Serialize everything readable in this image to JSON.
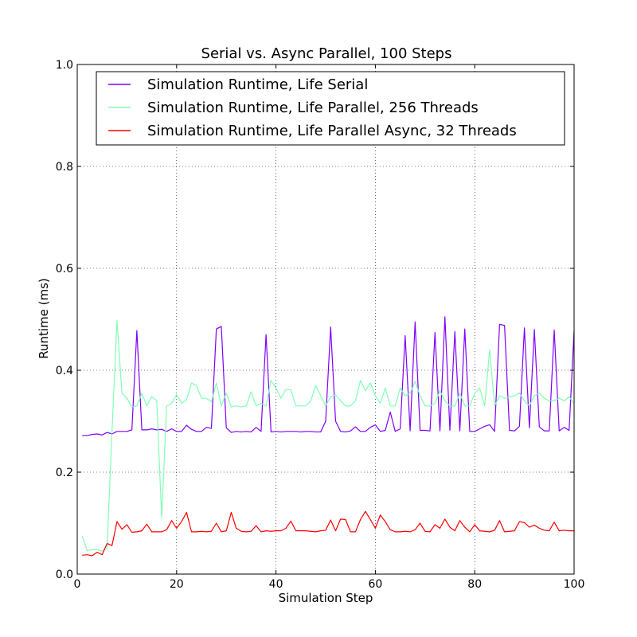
{
  "chart_data": {
    "type": "line",
    "title": "Serial vs. Async Parallel, 100 Steps",
    "xlabel": "Simulation Step",
    "ylabel": "Runtime (ms)",
    "xlim": [
      0,
      100
    ],
    "ylim": [
      0.0,
      1.0
    ],
    "xticks": [
      "0",
      "20",
      "40",
      "60",
      "80",
      "100"
    ],
    "yticks": [
      "0.0",
      "0.2",
      "0.4",
      "0.6",
      "0.8",
      "1.0"
    ],
    "grid": true,
    "legend_position": "top-left",
    "x": [
      1,
      2,
      3,
      4,
      5,
      6,
      7,
      8,
      9,
      10,
      11,
      12,
      13,
      14,
      15,
      16,
      17,
      18,
      19,
      20,
      21,
      22,
      23,
      24,
      25,
      26,
      27,
      28,
      29,
      30,
      31,
      32,
      33,
      34,
      35,
      36,
      37,
      38,
      39,
      40,
      41,
      42,
      43,
      44,
      45,
      46,
      47,
      48,
      49,
      50,
      51,
      52,
      53,
      54,
      55,
      56,
      57,
      58,
      59,
      60,
      61,
      62,
      63,
      64,
      65,
      66,
      67,
      68,
      69,
      70,
      71,
      72,
      73,
      74,
      75,
      76,
      77,
      78,
      79,
      80,
      81,
      82,
      83,
      84,
      85,
      86,
      87,
      88,
      89,
      90,
      91,
      92,
      93,
      94,
      95,
      96,
      97,
      98,
      99,
      100
    ],
    "series": [
      {
        "name": "Simulation Runtime, Life Serial",
        "color": "#8000ff",
        "values": [
          0.272,
          0.272,
          0.274,
          0.275,
          0.273,
          0.278,
          0.275,
          0.28,
          0.28,
          0.28,
          0.283,
          0.478,
          0.283,
          0.283,
          0.285,
          0.283,
          0.284,
          0.28,
          0.285,
          0.28,
          0.28,
          0.292,
          0.284,
          0.28,
          0.28,
          0.288,
          0.286,
          0.481,
          0.486,
          0.287,
          0.278,
          0.28,
          0.279,
          0.28,
          0.279,
          0.288,
          0.28,
          0.47,
          0.279,
          0.28,
          0.279,
          0.28,
          0.28,
          0.28,
          0.279,
          0.28,
          0.28,
          0.279,
          0.279,
          0.3,
          0.485,
          0.3,
          0.28,
          0.279,
          0.281,
          0.289,
          0.28,
          0.28,
          0.288,
          0.293,
          0.28,
          0.282,
          0.318,
          0.28,
          0.285,
          0.468,
          0.281,
          0.495,
          0.282,
          0.282,
          0.281,
          0.474,
          0.281,
          0.505,
          0.282,
          0.476,
          0.281,
          0.481,
          0.28,
          0.28,
          0.285,
          0.29,
          0.293,
          0.28,
          0.49,
          0.488,
          0.282,
          0.281,
          0.29,
          0.483,
          0.287,
          0.48,
          0.289,
          0.281,
          0.281,
          0.479,
          0.281,
          0.288,
          0.282,
          0.478
        ]
      },
      {
        "name": "Simulation Runtime, Life Parallel, 256 Threads",
        "color": "#80ffb4",
        "values": [
          0.075,
          0.046,
          0.048,
          0.048,
          0.045,
          0.05,
          0.28,
          0.498,
          0.355,
          0.345,
          0.328,
          0.33,
          0.355,
          0.33,
          0.348,
          0.34,
          0.11,
          0.33,
          0.335,
          0.352,
          0.335,
          0.342,
          0.375,
          0.37,
          0.345,
          0.345,
          0.338,
          0.375,
          0.33,
          0.355,
          0.328,
          0.33,
          0.328,
          0.33,
          0.358,
          0.33,
          0.335,
          0.33,
          0.38,
          0.365,
          0.345,
          0.362,
          0.362,
          0.33,
          0.33,
          0.33,
          0.34,
          0.37,
          0.35,
          0.33,
          0.348,
          0.352,
          0.34,
          0.33,
          0.33,
          0.34,
          0.38,
          0.36,
          0.375,
          0.35,
          0.335,
          0.365,
          0.33,
          0.33,
          0.365,
          0.35,
          0.355,
          0.378,
          0.35,
          0.33,
          0.33,
          0.335,
          0.36,
          0.34,
          0.33,
          0.33,
          0.355,
          0.33,
          0.33,
          0.355,
          0.365,
          0.33,
          0.44,
          0.33,
          0.35,
          0.345,
          0.348,
          0.35,
          0.355,
          0.34,
          0.33,
          0.35,
          0.355,
          0.345,
          0.34,
          0.34,
          0.345,
          0.34,
          0.348,
          0.335
        ]
      },
      {
        "name": "Simulation Runtime, Life Parallel Async, 32 Threads",
        "color": "#ff0000",
        "values": [
          0.037,
          0.038,
          0.036,
          0.043,
          0.038,
          0.06,
          0.056,
          0.103,
          0.088,
          0.097,
          0.082,
          0.083,
          0.085,
          0.098,
          0.083,
          0.083,
          0.083,
          0.087,
          0.105,
          0.09,
          0.103,
          0.121,
          0.083,
          0.083,
          0.084,
          0.083,
          0.084,
          0.1,
          0.083,
          0.085,
          0.121,
          0.09,
          0.084,
          0.083,
          0.084,
          0.095,
          0.083,
          0.085,
          0.084,
          0.085,
          0.085,
          0.09,
          0.104,
          0.085,
          0.085,
          0.085,
          0.084,
          0.083,
          0.085,
          0.086,
          0.106,
          0.085,
          0.108,
          0.107,
          0.083,
          0.083,
          0.107,
          0.123,
          0.107,
          0.09,
          0.116,
          0.103,
          0.087,
          0.083,
          0.083,
          0.084,
          0.083,
          0.087,
          0.1,
          0.084,
          0.083,
          0.097,
          0.09,
          0.108,
          0.092,
          0.085,
          0.105,
          0.092,
          0.083,
          0.097,
          0.085,
          0.084,
          0.083,
          0.086,
          0.105,
          0.083,
          0.084,
          0.085,
          0.103,
          0.101,
          0.092,
          0.096,
          0.09,
          0.086,
          0.085,
          0.102,
          0.085,
          0.086,
          0.085,
          0.085
        ]
      }
    ]
  }
}
